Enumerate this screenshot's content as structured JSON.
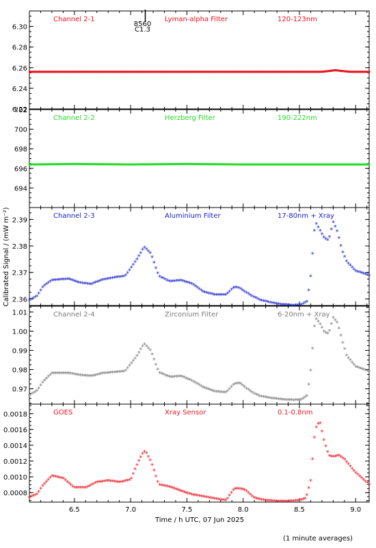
{
  "ylabel": "Calibrated Signal / (mW m⁻²)",
  "xlabel": "Time / h UTC, 07 Jun 2025",
  "footer": "(1 minute averages)",
  "event_marker": {
    "x": 7.13,
    "label_top": "8560",
    "label_bottom": "C1.3"
  },
  "xlim": [
    6.1,
    9.12
  ],
  "xticks": [
    "6.5",
    "7.0",
    "7.5",
    "8.0",
    "8.5",
    "9.0"
  ],
  "chart_data": [
    {
      "type": "scatter",
      "name": "Channel 2-1",
      "color": "#e8141e",
      "labels": {
        "channel": "Channel 2-1",
        "filter": "Lyman-alpha Filter",
        "band": "120-123nm"
      },
      "ylim": [
        6.22,
        6.315
      ],
      "yticks": [
        "6.22",
        "6.24",
        "6.26",
        "6.28",
        "6.30"
      ],
      "x": [
        6.1,
        6.5,
        7.0,
        7.5,
        8.0,
        8.5,
        8.7,
        8.78,
        8.82,
        8.86,
        8.95,
        9.12
      ],
      "y": [
        6.256,
        6.256,
        6.256,
        6.256,
        6.256,
        6.256,
        6.256,
        6.257,
        6.2575,
        6.257,
        6.256,
        6.256
      ]
    },
    {
      "type": "scatter",
      "name": "Channel 2-2",
      "color": "#22dc22",
      "labels": {
        "channel": "Channel 2-2",
        "filter": "Herzberg Filter",
        "band": "190-222nm"
      },
      "ylim": [
        692,
        702
      ],
      "yticks": [
        "694",
        "696",
        "698",
        "700",
        "702"
      ],
      "x": [
        6.1,
        6.5,
        7.0,
        7.5,
        8.0,
        8.5,
        9.12
      ],
      "y": [
        696.4,
        696.45,
        696.4,
        696.45,
        696.4,
        696.4,
        696.4
      ]
    },
    {
      "type": "scatter",
      "name": "Channel 2-3",
      "color": "#1a22c8",
      "labels": {
        "channel": "Channel 2-3",
        "filter": "Aluminium Filter",
        "band": "17-80nm + Xray"
      },
      "ylim": [
        2.3575,
        2.3945
      ],
      "yticks": [
        "2.36",
        "2.37",
        "2.38",
        "2.39"
      ],
      "x": [
        6.1,
        6.17,
        6.22,
        6.3,
        6.45,
        6.55,
        6.65,
        6.75,
        6.85,
        6.95,
        7.05,
        7.12,
        7.18,
        7.25,
        7.35,
        7.45,
        7.55,
        7.65,
        7.75,
        7.85,
        7.92,
        7.97,
        8.02,
        8.08,
        8.15,
        8.25,
        8.35,
        8.45,
        8.52,
        8.57,
        8.6,
        8.64,
        8.68,
        8.72,
        8.76,
        8.8,
        8.84,
        8.88,
        8.92,
        9.0,
        9.12
      ],
      "y": [
        2.3595,
        2.361,
        2.3645,
        2.367,
        2.3675,
        2.366,
        2.3655,
        2.3672,
        2.368,
        2.3685,
        2.3745,
        2.3795,
        2.377,
        2.3685,
        2.3665,
        2.367,
        2.3655,
        2.3625,
        2.3615,
        2.3615,
        2.3645,
        2.364,
        2.3625,
        2.361,
        2.3595,
        2.3585,
        2.3578,
        2.3575,
        2.3578,
        2.359,
        2.3685,
        2.389,
        2.386,
        2.383,
        2.382,
        2.389,
        2.385,
        2.378,
        2.374,
        2.3705,
        2.3688
      ]
    },
    {
      "type": "scatter",
      "name": "Channel 2-4",
      "color": "#7a7a7a",
      "labels": {
        "channel": "Channel 2-4",
        "filter": "Zirconium Filter",
        "band": "6-20nm + Xray"
      },
      "ylim": [
        0.962,
        1.013
      ],
      "yticks": [
        "0.97",
        "0.98",
        "0.99",
        "1.00",
        "1.01"
      ],
      "x": [
        6.1,
        6.17,
        6.22,
        6.3,
        6.45,
        6.55,
        6.65,
        6.75,
        6.85,
        6.95,
        7.05,
        7.12,
        7.18,
        7.25,
        7.35,
        7.45,
        7.55,
        7.65,
        7.75,
        7.85,
        7.92,
        7.97,
        8.02,
        8.08,
        8.15,
        8.25,
        8.35,
        8.45,
        8.52,
        8.57,
        8.6,
        8.64,
        8.68,
        8.72,
        8.76,
        8.8,
        8.84,
        8.88,
        8.92,
        9.0,
        9.12
      ],
      "y": [
        0.9665,
        0.969,
        0.9735,
        0.978,
        0.978,
        0.977,
        0.9765,
        0.978,
        0.9785,
        0.979,
        0.9865,
        0.9935,
        0.9895,
        0.9785,
        0.976,
        0.9765,
        0.974,
        0.9705,
        0.9685,
        0.968,
        0.9725,
        0.973,
        0.9705,
        0.968,
        0.966,
        0.965,
        0.9643,
        0.964,
        0.9643,
        0.9665,
        0.9795,
        1.007,
        1.004,
        0.9995,
        0.9985,
        1.007,
        1.004,
        0.995,
        0.987,
        0.9815,
        0.979
      ]
    },
    {
      "type": "scatter",
      "name": "GOES",
      "color": "#e8141e",
      "labels": {
        "channel": "GOES",
        "filter": "Xray Sensor",
        "band": "0.1-0.8nm"
      },
      "ylim": [
        0.00068,
        0.00192
      ],
      "yticks": [
        "0.0008",
        "0.0010",
        "0.0012",
        "0.0014",
        "0.0016",
        "0.0018"
      ],
      "x": [
        6.1,
        6.17,
        6.22,
        6.3,
        6.4,
        6.5,
        6.6,
        6.7,
        6.8,
        6.9,
        7.0,
        7.05,
        7.1,
        7.13,
        7.18,
        7.25,
        7.35,
        7.45,
        7.55,
        7.65,
        7.75,
        7.85,
        7.92,
        7.97,
        8.02,
        8.1,
        8.2,
        8.3,
        8.4,
        8.5,
        8.56,
        8.6,
        8.64,
        8.68,
        8.72,
        8.76,
        8.8,
        8.85,
        8.9,
        9.0,
        9.12
      ],
      "y": [
        0.00074,
        0.00078,
        0.00089,
        0.00101,
        0.00098,
        0.00086,
        0.00086,
        0.00093,
        0.00095,
        0.00093,
        0.00096,
        0.00113,
        0.00128,
        0.00133,
        0.00119,
        0.0009,
        0.00087,
        0.00082,
        0.00077,
        0.00075,
        0.00072,
        0.0007,
        0.00085,
        0.00085,
        0.00083,
        0.00073,
        0.0007,
        0.00069,
        0.00069,
        0.0007,
        0.00073,
        0.00095,
        0.0016,
        0.0017,
        0.00145,
        0.00127,
        0.00125,
        0.00127,
        0.00122,
        0.00105,
        0.0009
      ]
    }
  ]
}
